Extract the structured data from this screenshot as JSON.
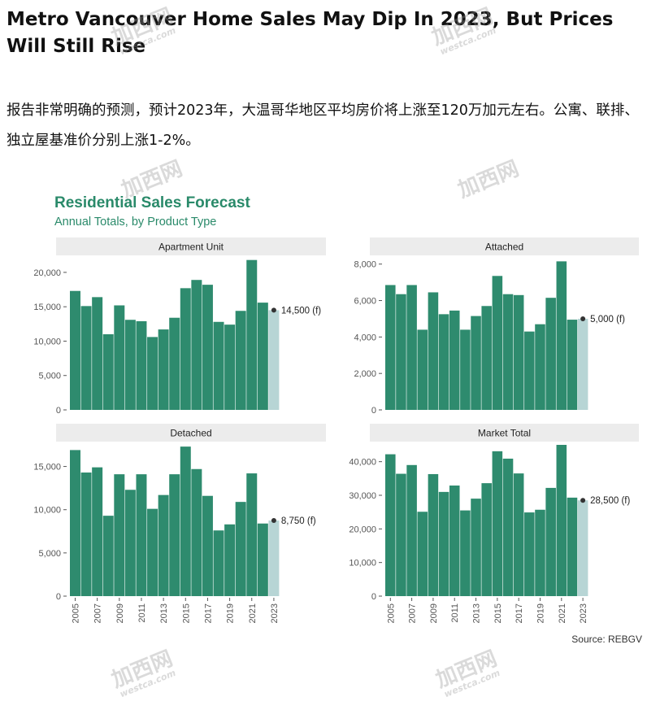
{
  "article": {
    "headline": "Metro Vancouver Home Sales May Dip In 2023, But Prices Will Still Rise",
    "intro": "报告非常明确的预测，预计2023年，大温哥华地区平均房价将上涨至120万加元左右。公寓、联排、独立屋基准价分别上涨1-2%。"
  },
  "figure": {
    "title": "Residential Sales Forecast",
    "subtitle": "Annual Totals, by Product Type",
    "source": "Source: REBGV"
  },
  "watermark": {
    "main": "加西网",
    "sub": "westca.com"
  },
  "colors": {
    "bar": "#2e8b6e",
    "forecast": "#b7d5d5",
    "title": "#2a8a6a",
    "strip": "#ececec"
  },
  "chart_data": [
    {
      "type": "bar",
      "title": "Apartment Unit",
      "x": [
        2005,
        2006,
        2007,
        2008,
        2009,
        2010,
        2011,
        2012,
        2013,
        2014,
        2015,
        2016,
        2017,
        2018,
        2019,
        2020,
        2021,
        2022,
        2023
      ],
      "tick_labels": [
        "2005",
        "2007",
        "2009",
        "2011",
        "2013",
        "2015",
        "2017",
        "2019",
        "2021",
        "2023"
      ],
      "values": [
        17300,
        15100,
        16400,
        11000,
        15200,
        13100,
        12900,
        10600,
        11700,
        13400,
        17700,
        18900,
        18200,
        12800,
        12400,
        14400,
        21800,
        15600,
        14500
      ],
      "forecast_year": 2023,
      "forecast_label": "14,500 (f)",
      "yticks": [
        0,
        5000,
        10000,
        15000,
        20000
      ],
      "ytick_labels": [
        "0",
        "5,000",
        "10,000",
        "15,000",
        "20,000"
      ],
      "ylim": [
        0,
        22000
      ]
    },
    {
      "type": "bar",
      "title": "Attached",
      "x": [
        2005,
        2006,
        2007,
        2008,
        2009,
        2010,
        2011,
        2012,
        2013,
        2014,
        2015,
        2016,
        2017,
        2018,
        2019,
        2020,
        2021,
        2022,
        2023
      ],
      "tick_labels": [
        "2005",
        "2007",
        "2009",
        "2011",
        "2013",
        "2015",
        "2017",
        "2019",
        "2021",
        "2023"
      ],
      "values": [
        6850,
        6350,
        6850,
        4400,
        6450,
        5250,
        5450,
        4400,
        5150,
        5700,
        7350,
        6350,
        6300,
        4300,
        4700,
        6150,
        8150,
        4950,
        5000
      ],
      "forecast_year": 2023,
      "forecast_label": "5,000 (f)",
      "yticks": [
        0,
        2000,
        4000,
        6000,
        8000
      ],
      "ytick_labels": [
        "0",
        "2,000",
        "4,000",
        "6,000",
        "8,000"
      ],
      "ylim": [
        0,
        8300
      ]
    },
    {
      "type": "bar",
      "title": "Detached",
      "x": [
        2005,
        2006,
        2007,
        2008,
        2009,
        2010,
        2011,
        2012,
        2013,
        2014,
        2015,
        2016,
        2017,
        2018,
        2019,
        2020,
        2021,
        2022,
        2023
      ],
      "tick_labels": [
        "2005",
        "2007",
        "2009",
        "2011",
        "2013",
        "2015",
        "2017",
        "2019",
        "2021",
        "2023"
      ],
      "values": [
        16900,
        14300,
        14900,
        9300,
        14100,
        12300,
        14100,
        10100,
        11700,
        14100,
        17300,
        14700,
        11600,
        7600,
        8300,
        10900,
        14200,
        8400,
        8750
      ],
      "forecast_year": 2023,
      "forecast_label": "8,750 (f)",
      "yticks": [
        0,
        5000,
        10000,
        15000
      ],
      "ytick_labels": [
        "0",
        "5,000",
        "10,000",
        "15,000"
      ],
      "ylim": [
        0,
        17500
      ]
    },
    {
      "type": "bar",
      "title": "Market Total",
      "x": [
        2005,
        2006,
        2007,
        2008,
        2009,
        2010,
        2011,
        2012,
        2013,
        2014,
        2015,
        2016,
        2017,
        2018,
        2019,
        2020,
        2021,
        2022,
        2023
      ],
      "tick_labels": [
        "2005",
        "2007",
        "2009",
        "2011",
        "2013",
        "2015",
        "2017",
        "2019",
        "2021",
        "2023"
      ],
      "values": [
        42200,
        36400,
        39000,
        25100,
        36300,
        31000,
        32900,
        25500,
        29000,
        33600,
        43100,
        40900,
        36500,
        24900,
        25700,
        32200,
        45000,
        29300,
        28500
      ],
      "forecast_year": 2023,
      "forecast_label": "28,500 (f)",
      "yticks": [
        0,
        10000,
        20000,
        30000,
        40000
      ],
      "ytick_labels": [
        "0",
        "10,000",
        "20,000",
        "30,000",
        "40,000"
      ],
      "ylim": [
        0,
        45000
      ]
    }
  ]
}
